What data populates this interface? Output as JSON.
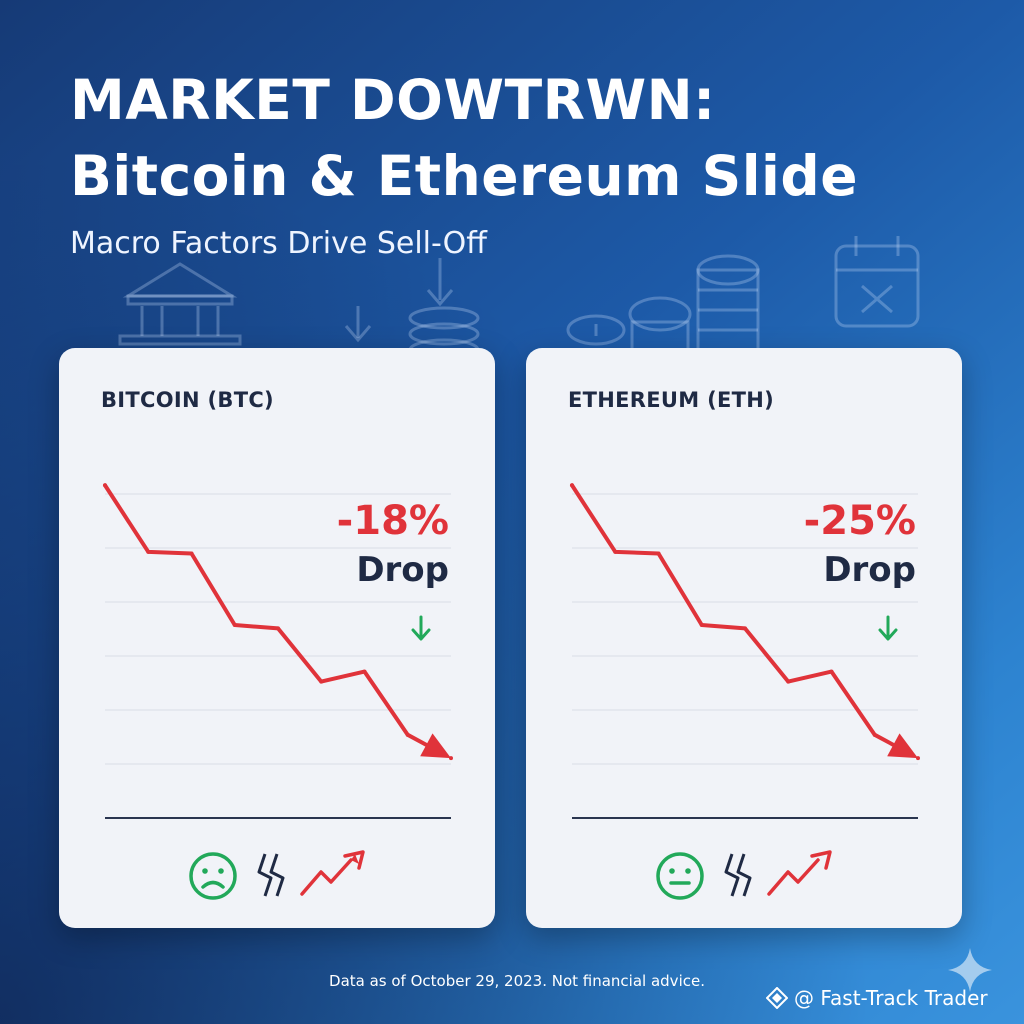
{
  "header": {
    "title_line1": "MARKET DOWTRWN:",
    "title_line2": "Bitcoin & Ethereum Slide",
    "subtitle": "Macro Factors Drive Sell-Off"
  },
  "colors": {
    "accent_red": "#e0333a",
    "accent_green": "#22a95a",
    "text_dark": "#1f2a44",
    "card_bg": "#f1f3f8"
  },
  "decor_icons": [
    "bank-icon",
    "down-arrow-icon",
    "coin-stack-icon",
    "coin-euro-icon",
    "coin-dollar-icon",
    "calendar-x-icon"
  ],
  "chart_data": [
    {
      "type": "line",
      "title": "BITCOIN (BTC)",
      "x": [
        0,
        1,
        2,
        3,
        4,
        5,
        6,
        7,
        8
      ],
      "y": [
        100,
        80,
        79.5,
        58,
        57,
        41,
        44,
        25,
        18
      ],
      "xlabel": "",
      "ylabel": "",
      "ylim": [
        0,
        110
      ],
      "grid": true,
      "annotation": {
        "value": "-18%",
        "label": "Drop"
      },
      "status_icons": [
        "sad-face-icon",
        "volatility-icon",
        "trend-up-icon"
      ]
    },
    {
      "type": "line",
      "title": "ETHEREUM (ETH)",
      "x": [
        0,
        1,
        2,
        3,
        4,
        5,
        6,
        7,
        8
      ],
      "y": [
        100,
        80,
        79.5,
        58,
        57,
        41,
        44,
        25,
        18
      ],
      "xlabel": "",
      "ylabel": "",
      "ylim": [
        0,
        110
      ],
      "grid": true,
      "annotation": {
        "value": "-25%",
        "label": "Drop"
      },
      "status_icons": [
        "neutral-face-icon",
        "volatility-icon",
        "trend-up-icon"
      ]
    }
  ],
  "footer": {
    "disclaimer": "Data as of October 29, 2023. Not financial advice.",
    "brand": "@ Fast-Track Trader"
  }
}
